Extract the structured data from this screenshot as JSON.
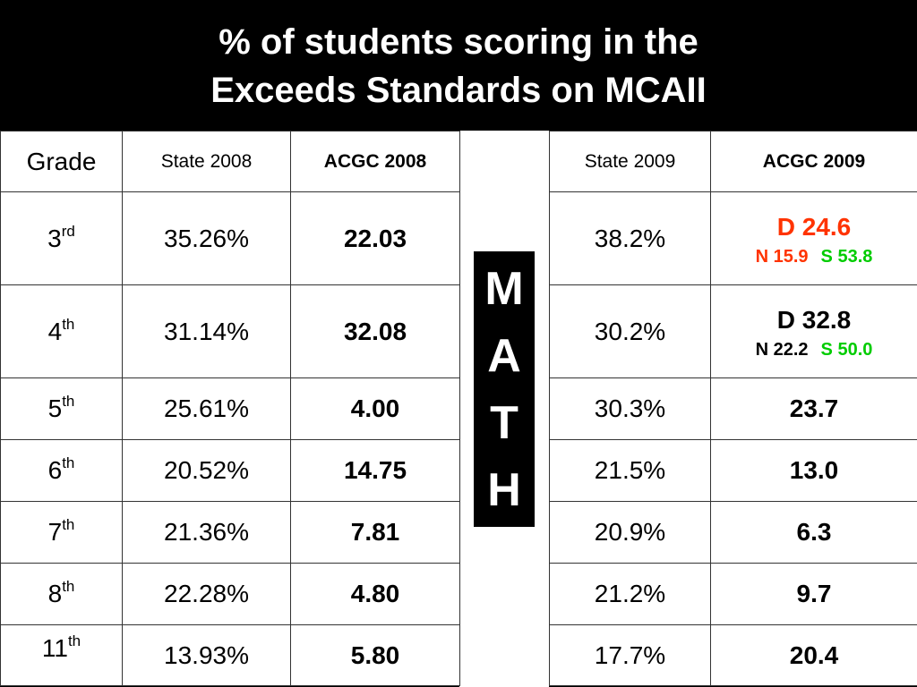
{
  "title": {
    "line1": "% of students scoring in the",
    "line2": "Exceeds Standards on MCAII"
  },
  "headers": {
    "grade": "Grade",
    "state_2008": "State 2008",
    "acgc_2008": "ACGC 2008",
    "state_2009": "State 2009",
    "acgc_2009": "ACGC 2009"
  },
  "subject_letters": [
    "M",
    "A",
    "T",
    "H"
  ],
  "colors": {
    "red": "#ff3300",
    "green": "#00cc00",
    "black": "#000000"
  },
  "rows": [
    {
      "grade": "3",
      "suffix": "rd",
      "state_2008": "35.26%",
      "acgc_2008": "22.03",
      "acgc_2008_color": "red",
      "state_2009": "38.2%",
      "acgc_2009": "D 24.6",
      "acgc_2009_color": "red",
      "n_val": "N 15.9",
      "n_color": "red",
      "s_val": "S 53.8",
      "s_color": "green"
    },
    {
      "grade": "4",
      "suffix": "th",
      "state_2008": "31.14%",
      "acgc_2008": "32.08",
      "acgc_2008_color": "black",
      "state_2009": "30.2%",
      "acgc_2009": "D 32.8",
      "acgc_2009_color": "black",
      "n_val": "N 22.2",
      "n_color": "black",
      "s_val": "S 50.0",
      "s_color": "green"
    },
    {
      "grade": "5",
      "suffix": "th",
      "state_2008": "25.61%",
      "acgc_2008": "4.00",
      "acgc_2008_color": "red",
      "state_2009": "30.3%",
      "acgc_2009": "23.7",
      "acgc_2009_color": "black"
    },
    {
      "grade": "6",
      "suffix": "th",
      "state_2008": "20.52%",
      "acgc_2008": "14.75",
      "acgc_2008_color": "black",
      "state_2009": "21.5%",
      "acgc_2009": "13.0",
      "acgc_2009_color": "black"
    },
    {
      "grade": "7",
      "suffix": "th",
      "state_2008": "21.36%",
      "acgc_2008": "7.81",
      "acgc_2008_color": "red",
      "state_2009": "20.9%",
      "acgc_2009": "6.3",
      "acgc_2009_color": "red"
    },
    {
      "grade": "8",
      "suffix": "th",
      "state_2008": "22.28%",
      "acgc_2008": "4.80",
      "acgc_2008_color": "red",
      "state_2009": "21.2%",
      "acgc_2009": "9.7",
      "acgc_2009_color": "red"
    },
    {
      "grade": "11",
      "suffix": "th",
      "state_2008": "13.93%",
      "acgc_2008": "5.80",
      "acgc_2008_color": "black",
      "state_2009": "17.7%",
      "acgc_2009": "20.4",
      "acgc_2009_color": "black"
    }
  ]
}
